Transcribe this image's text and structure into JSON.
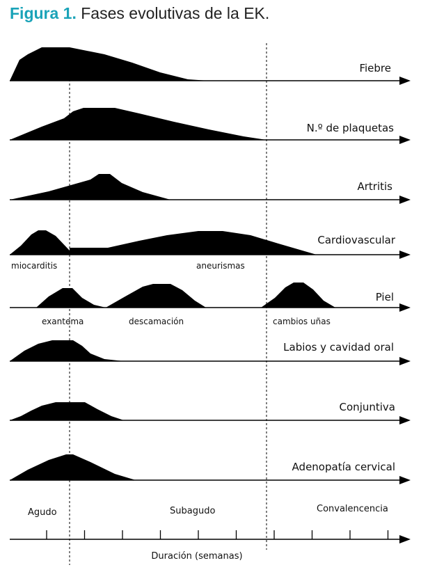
{
  "figure": {
    "title_lead": "Figura 1.",
    "title_rest": " Fases evolutivas de la EK."
  },
  "rows": [
    {
      "label": "Fiebre",
      "sublabels": []
    },
    {
      "label": "N.º de plaquetas",
      "sublabels": []
    },
    {
      "label": "Artritis",
      "sublabels": []
    },
    {
      "label": "Cardiovascular",
      "sublabels": [
        "miocarditis",
        "aneurismas"
      ]
    },
    {
      "label": "Piel",
      "sublabels": [
        "exantema",
        "descamación",
        "cambios uñas"
      ]
    },
    {
      "label": "Labios y cavidad oral",
      "sublabels": []
    },
    {
      "label": "Conjuntiva",
      "sublabels": []
    },
    {
      "label": "Adenopatía cervical",
      "sublabels": []
    }
  ],
  "phases": [
    "Agudo",
    "Subagudo",
    "Convalencencia"
  ],
  "axis": {
    "label": "Duración (semanas)",
    "tick_count": 10
  },
  "colors": {
    "accent": "#1aa3b8",
    "ink": "#000000"
  }
}
